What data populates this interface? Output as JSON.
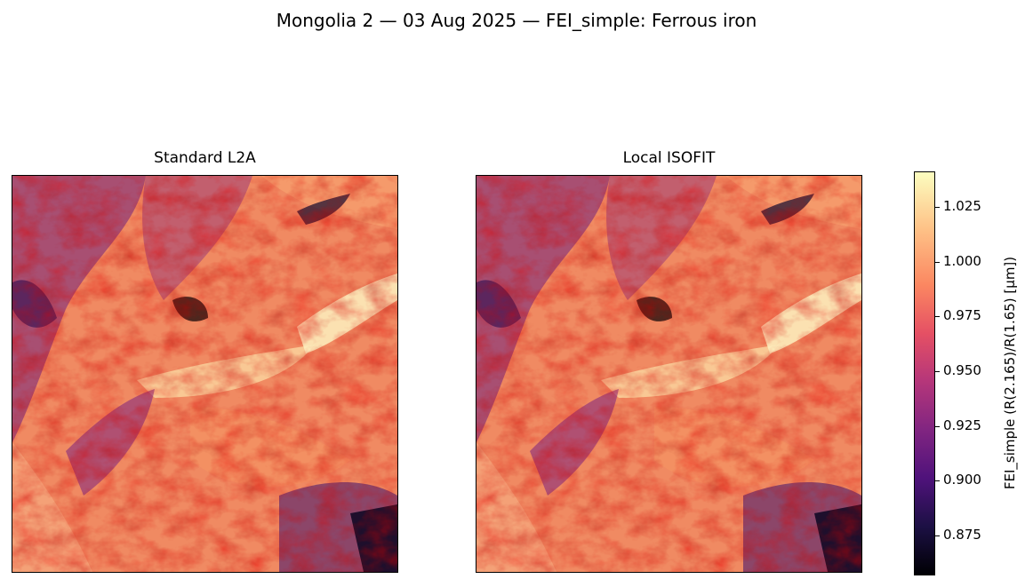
{
  "chart_data": {
    "type": "heatmap",
    "title": "Mongolia 2 — 03 Aug 2025 — FEI_simple: Ferrous iron",
    "panels": [
      {
        "title": "Standard L2A"
      },
      {
        "title": "Local ISOFIT"
      }
    ],
    "colormap": "magma",
    "colorbar": {
      "label": "FEI_simple  (R(2.165)/R(1.65)  [µm])",
      "range": [
        0.857,
        1.041
      ],
      "ticks": [
        "0.875",
        "0.900",
        "0.925",
        "0.950",
        "0.975",
        "1.000",
        "1.025"
      ]
    },
    "axes_ticks_visible": false,
    "grid": false
  }
}
